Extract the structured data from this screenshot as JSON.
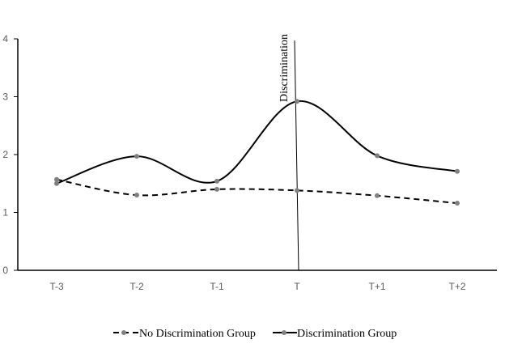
{
  "chart_data": {
    "type": "line",
    "categories": [
      "T-3",
      "T-2",
      "T-1",
      "T",
      "T+1",
      "T+2"
    ],
    "series": [
      {
        "name": "No Discrimination Group",
        "values": [
          1.57,
          1.3,
          1.4,
          1.38,
          1.29,
          1.16
        ],
        "style": "dashed",
        "smooth": true,
        "color": "#000000",
        "marker_color": "#808080"
      },
      {
        "name": "Discrimination Group",
        "values": [
          1.5,
          1.97,
          1.54,
          2.92,
          1.98,
          1.71
        ],
        "style": "solid",
        "smooth": true,
        "color": "#000000",
        "marker_color": "#808080"
      }
    ],
    "yticks": [
      "0",
      "1",
      "2",
      "3",
      "4"
    ],
    "ylim": [
      0,
      4
    ],
    "grid": false,
    "legend": "bottom",
    "annotation": {
      "label": "Discrimination",
      "at_category": "T"
    }
  }
}
